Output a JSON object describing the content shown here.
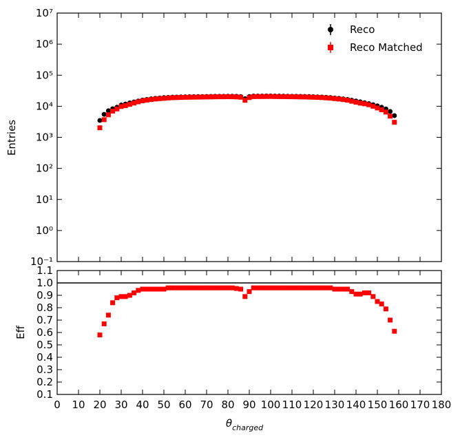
{
  "chart_data": [
    {
      "type": "scatter",
      "ylabel": "Entries",
      "log_y": true,
      "xlim": [
        0,
        180
      ],
      "ylim": [
        0.1,
        10000000
      ],
      "yticks": [
        {
          "value": 0.1,
          "label": "10⁻¹"
        },
        {
          "value": 1,
          "label": "10⁰"
        },
        {
          "value": 10,
          "label": "10¹"
        },
        {
          "value": 100,
          "label": "10²"
        },
        {
          "value": 1000,
          "label": "10³"
        },
        {
          "value": 10000,
          "label": "10⁴"
        },
        {
          "value": 100000,
          "label": "10⁵"
        },
        {
          "value": 1000000,
          "label": "10⁶"
        },
        {
          "value": 10000000,
          "label": "10⁷"
        }
      ],
      "legend": "upper right",
      "x": [
        20,
        22,
        24,
        26,
        28,
        30,
        32,
        34,
        36,
        38,
        40,
        42,
        44,
        46,
        48,
        50,
        52,
        54,
        56,
        58,
        60,
        62,
        64,
        66,
        68,
        70,
        72,
        74,
        76,
        78,
        80,
        82,
        84,
        86,
        88,
        90,
        92,
        94,
        96,
        98,
        100,
        102,
        104,
        106,
        108,
        110,
        112,
        114,
        116,
        118,
        120,
        122,
        124,
        126,
        128,
        130,
        132,
        134,
        136,
        138,
        140,
        142,
        144,
        146,
        148,
        150,
        152,
        154,
        156,
        158
      ],
      "series": [
        {
          "name": "Reco",
          "color": "#000000",
          "marker": "circle",
          "values": [
            3500,
            5500,
            7200,
            8300,
            9300,
            11000,
            11800,
            12800,
            13800,
            14800,
            15800,
            16600,
            17300,
            18000,
            18500,
            19000,
            19300,
            19600,
            19800,
            20000,
            20200,
            20300,
            20400,
            20500,
            20600,
            20700,
            20800,
            20900,
            21000,
            21000,
            21100,
            21100,
            21000,
            20500,
            17500,
            20500,
            21300,
            21400,
            21400,
            21500,
            21500,
            21400,
            21300,
            21200,
            21100,
            21000,
            20900,
            20800,
            20700,
            20500,
            20300,
            20100,
            19800,
            19400,
            19000,
            18500,
            18000,
            17300,
            16500,
            15600,
            14800,
            13900,
            13000,
            12200,
            11200,
            10300,
            9300,
            8200,
            6800,
            5000
          ]
        },
        {
          "name": "Reco Matched",
          "color": "#ff0000",
          "marker": "square",
          "values": [
            2030,
            3700,
            5300,
            7000,
            8200,
            9800,
            10500,
            11500,
            12700,
            13900,
            15000,
            15800,
            16400,
            17100,
            17600,
            18000,
            18500,
            18800,
            19000,
            19200,
            19400,
            19500,
            19600,
            19700,
            19800,
            19900,
            20000,
            20100,
            20200,
            20200,
            20300,
            20200,
            20000,
            19500,
            15600,
            19100,
            20400,
            20500,
            20500,
            20600,
            20600,
            20500,
            20400,
            20400,
            20300,
            20200,
            20100,
            20000,
            19900,
            19700,
            19500,
            19300,
            19000,
            18600,
            18200,
            17600,
            17100,
            16400,
            15700,
            14500,
            13500,
            12600,
            12000,
            11200,
            10000,
            8800,
            7700,
            6500,
            4800,
            3050
          ]
        }
      ]
    },
    {
      "type": "scatter",
      "ylabel": "Eff",
      "xlabel": "θ",
      "xlabel_subscript": "charged",
      "xlim": [
        0,
        180
      ],
      "ylim": [
        0.1,
        1.1
      ],
      "xticks": [
        0,
        10,
        20,
        30,
        40,
        50,
        60,
        70,
        80,
        90,
        100,
        110,
        120,
        130,
        140,
        150,
        160,
        170,
        180
      ],
      "yticks": [
        0.1,
        0.2,
        0.3,
        0.4,
        0.5,
        0.6,
        0.7,
        0.8,
        0.9,
        {
          "value": 1,
          "label": "1.0"
        },
        1.1
      ],
      "reference_line": 1,
      "x": [
        20,
        22,
        24,
        26,
        28,
        30,
        32,
        34,
        36,
        38,
        40,
        42,
        44,
        46,
        48,
        50,
        52,
        54,
        56,
        58,
        60,
        62,
        64,
        66,
        68,
        70,
        72,
        74,
        76,
        78,
        80,
        82,
        84,
        86,
        88,
        90,
        92,
        94,
        96,
        98,
        100,
        102,
        104,
        106,
        108,
        110,
        112,
        114,
        116,
        118,
        120,
        122,
        124,
        126,
        128,
        130,
        132,
        134,
        136,
        138,
        140,
        142,
        144,
        146,
        148,
        150,
        152,
        154,
        156,
        158
      ],
      "series": [
        {
          "name": "Eff",
          "color": "#ff0000",
          "marker": "square",
          "values": [
            0.58,
            0.67,
            0.74,
            0.84,
            0.88,
            0.89,
            0.89,
            0.9,
            0.92,
            0.94,
            0.95,
            0.95,
            0.95,
            0.95,
            0.95,
            0.95,
            0.96,
            0.96,
            0.96,
            0.96,
            0.96,
            0.96,
            0.96,
            0.96,
            0.96,
            0.96,
            0.96,
            0.96,
            0.96,
            0.96,
            0.96,
            0.96,
            0.955,
            0.95,
            0.89,
            0.93,
            0.96,
            0.96,
            0.96,
            0.96,
            0.96,
            0.96,
            0.96,
            0.96,
            0.96,
            0.96,
            0.96,
            0.96,
            0.96,
            0.96,
            0.96,
            0.96,
            0.96,
            0.96,
            0.96,
            0.95,
            0.95,
            0.95,
            0.95,
            0.93,
            0.91,
            0.91,
            0.92,
            0.92,
            0.89,
            0.85,
            0.83,
            0.79,
            0.7,
            0.61
          ]
        }
      ]
    }
  ]
}
